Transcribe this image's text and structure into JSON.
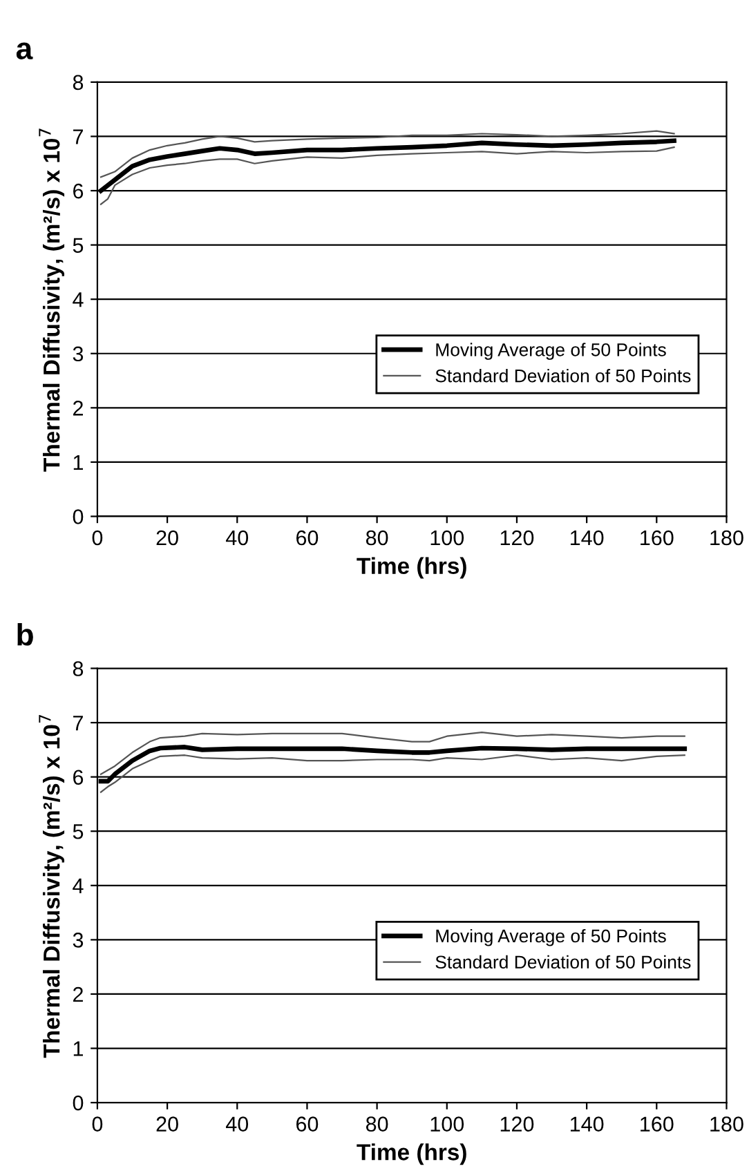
{
  "chart_data": [
    {
      "type": "line",
      "title": "a",
      "xlabel": "Time (hrs)",
      "ylabel": "Thermal Diffusivity, (m²/s) x 10$^{7}$",
      "xlim": [
        0,
        180
      ],
      "xticks": [
        0,
        20,
        40,
        60,
        80,
        100,
        120,
        140,
        160,
        180
      ],
      "ylim": [
        0,
        8
      ],
      "yticks": [
        0,
        1,
        2,
        3,
        4,
        5,
        6,
        7,
        8
      ],
      "grid": "y",
      "legend": "center right",
      "line_style": "solid",
      "marker": "none",
      "series": [
        {
          "name": "Moving Average of 50 Points",
          "color": "#000000",
          "x": [
            1,
            5,
            10,
            15,
            20,
            25,
            30,
            35,
            40,
            45,
            50,
            60,
            70,
            80,
            90,
            100,
            110,
            120,
            130,
            140,
            150,
            160,
            165
          ],
          "values": [
            6.0,
            6.2,
            6.45,
            6.57,
            6.63,
            6.68,
            6.73,
            6.78,
            6.75,
            6.68,
            6.7,
            6.75,
            6.75,
            6.78,
            6.8,
            6.83,
            6.88,
            6.85,
            6.83,
            6.85,
            6.88,
            6.9,
            6.92
          ]
        },
        {
          "name": "Standard Deviation of 50 Points",
          "color": "#555555",
          "x": [
            1,
            5,
            10,
            15,
            20,
            25,
            30,
            35,
            40,
            45,
            50,
            60,
            70,
            80,
            90,
            100,
            110,
            120,
            130,
            140,
            150,
            160,
            165
          ],
          "values": [
            6.25,
            6.35,
            6.6,
            6.75,
            6.83,
            6.88,
            6.95,
            7.0,
            6.97,
            6.9,
            6.92,
            6.95,
            6.97,
            6.98,
            7.02,
            7.02,
            7.05,
            7.03,
            7.0,
            7.02,
            7.05,
            7.1,
            7.05
          ]
        },
        {
          "color": "#555555",
          "x": [
            1,
            3,
            5,
            10,
            15,
            20,
            25,
            30,
            35,
            40,
            45,
            50,
            60,
            70,
            80,
            90,
            100,
            110,
            120,
            130,
            140,
            150,
            160,
            165
          ],
          "values": [
            5.75,
            5.85,
            6.1,
            6.3,
            6.42,
            6.47,
            6.5,
            6.55,
            6.58,
            6.58,
            6.5,
            6.55,
            6.62,
            6.6,
            6.65,
            6.68,
            6.7,
            6.72,
            6.68,
            6.72,
            6.7,
            6.72,
            6.73,
            6.8
          ]
        }
      ]
    },
    {
      "type": "line",
      "title": "b",
      "xlabel": "Time (hrs)",
      "ylabel": "Thermal Diffusivity, (m²/s) x 10$^{7}$",
      "xlim": [
        0,
        180
      ],
      "xticks": [
        0,
        20,
        40,
        60,
        80,
        100,
        120,
        140,
        160,
        180
      ],
      "ylim": [
        0,
        8
      ],
      "yticks": [
        0,
        1,
        2,
        3,
        4,
        5,
        6,
        7,
        8
      ],
      "grid": "y",
      "legend": "center right",
      "line_style": "solid",
      "marker": "none",
      "series": [
        {
          "name": "Moving Average of 50 Points",
          "color": "#000000",
          "x": [
            1,
            3,
            5,
            10,
            15,
            18,
            25,
            30,
            40,
            50,
            60,
            70,
            80,
            90,
            95,
            100,
            110,
            120,
            130,
            140,
            150,
            160,
            168
          ],
          "values": [
            5.92,
            5.92,
            6.05,
            6.3,
            6.48,
            6.53,
            6.55,
            6.5,
            6.52,
            6.52,
            6.52,
            6.52,
            6.48,
            6.45,
            6.45,
            6.48,
            6.53,
            6.52,
            6.5,
            6.52,
            6.52,
            6.52,
            6.52
          ]
        },
        {
          "name": "Standard Deviation of 50 Points",
          "color": "#555555",
          "x": [
            1,
            5,
            10,
            15,
            18,
            25,
            30,
            40,
            50,
            60,
            70,
            80,
            90,
            95,
            100,
            110,
            120,
            130,
            140,
            150,
            160,
            168
          ],
          "values": [
            6.05,
            6.2,
            6.45,
            6.65,
            6.72,
            6.75,
            6.8,
            6.78,
            6.8,
            6.8,
            6.8,
            6.72,
            6.65,
            6.65,
            6.75,
            6.82,
            6.75,
            6.78,
            6.75,
            6.72,
            6.75,
            6.75
          ]
        },
        {
          "color": "#555555",
          "x": [
            1,
            3,
            5,
            10,
            15,
            18,
            25,
            30,
            40,
            50,
            60,
            70,
            80,
            90,
            95,
            100,
            110,
            120,
            130,
            140,
            150,
            160,
            168
          ],
          "values": [
            5.72,
            5.82,
            5.9,
            6.15,
            6.3,
            6.38,
            6.4,
            6.35,
            6.33,
            6.35,
            6.3,
            6.3,
            6.32,
            6.32,
            6.3,
            6.35,
            6.32,
            6.4,
            6.32,
            6.35,
            6.3,
            6.38,
            6.4
          ]
        }
      ]
    }
  ]
}
